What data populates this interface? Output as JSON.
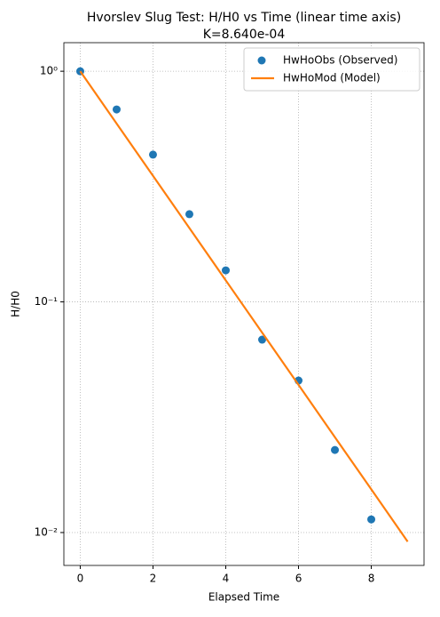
{
  "chart_data": {
    "type": "line",
    "title": "Hvorslev Slug Test: H/H0 vs Time (linear time axis)",
    "subtitle": "K=8.640e-04",
    "x_label": "Elapsed Time",
    "y_label": "H/H0",
    "xlim": [
      -0.45,
      9.45
    ],
    "xticks": [
      0,
      2,
      4,
      6,
      8
    ],
    "ylim": [
      0.0072,
      1.33
    ],
    "yscale": "log",
    "yticks": [
      {
        "value": 0.01,
        "label": "10⁻²"
      },
      {
        "value": 0.1,
        "label": "10⁻¹"
      },
      {
        "value": 1,
        "label": "10⁰"
      }
    ],
    "grid": true,
    "legend": "upper-right",
    "series": [
      {
        "name": "HwHoObs (Observed)",
        "color": "#1f77b4",
        "type": "scatter",
        "x": [
          0,
          1,
          2,
          3,
          4,
          5,
          6,
          7,
          8
        ],
        "values": [
          1.0,
          0.683,
          0.435,
          0.24,
          0.137,
          0.0686,
          0.0456,
          0.0228,
          0.0114
        ]
      },
      {
        "name": "HwHoMod (Model)",
        "color": "#ff7f0e",
        "type": "line",
        "x": [
          0,
          1,
          2,
          3,
          4,
          5,
          6,
          7,
          8,
          9
        ],
        "values": [
          1.0,
          0.593,
          0.352,
          0.209,
          0.124,
          0.0736,
          0.0437,
          0.0259,
          0.0154,
          0.00913
        ]
      }
    ]
  }
}
